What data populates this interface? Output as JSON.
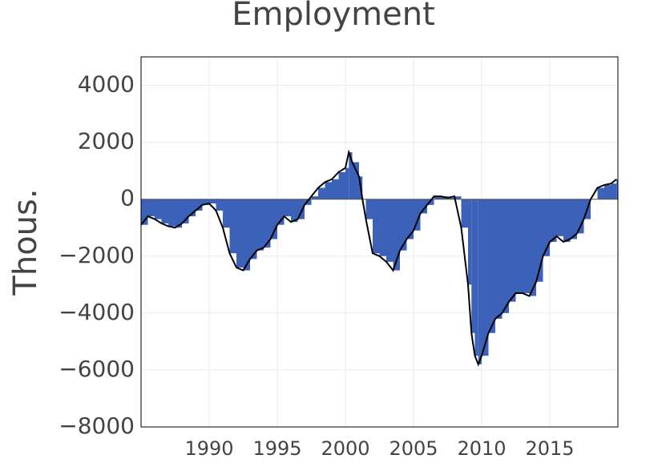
{
  "chart_data": {
    "type": "bar",
    "title": "Employment",
    "y_label": "Thous.",
    "x": [
      1985,
      1985.5,
      1986,
      1986.5,
      1987,
      1987.5,
      1988,
      1988.5,
      1989,
      1989.5,
      1990,
      1990.5,
      1991,
      1991.5,
      1992,
      1992.5,
      1993,
      1993.5,
      1994,
      1994.5,
      1995,
      1995.5,
      1996,
      1996.5,
      1997,
      1997.5,
      1998,
      1998.5,
      1999,
      1999.5,
      2000,
      2000.25,
      2000.5,
      2001,
      2001.25,
      2001.5,
      2002,
      2002.5,
      2003,
      2003.5,
      2004,
      2004.5,
      2005,
      2005.5,
      2006,
      2006.5,
      2007,
      2007.5,
      2008,
      2008.5,
      2009,
      2009.25,
      2009.5,
      2009.75,
      2010,
      2010.5,
      2011,
      2011.5,
      2012,
      2012.5,
      2013,
      2013.5,
      2014,
      2014.5,
      2015,
      2015.5,
      2016,
      2016.5,
      2017,
      2017.5,
      2018,
      2018.5,
      2019,
      2019.5,
      2019.9
    ],
    "values": [
      -900,
      -600,
      -700,
      -850,
      -950,
      -1000,
      -850,
      -600,
      -400,
      -200,
      -150,
      -400,
      -1000,
      -1900,
      -2400,
      -2500,
      -2100,
      -1800,
      -1700,
      -1400,
      -900,
      -600,
      -800,
      -700,
      -200,
      100,
      400,
      600,
      700,
      950,
      1100,
      1650,
      1300,
      800,
      0,
      -700,
      -1900,
      -2000,
      -2200,
      -2500,
      -1800,
      -1400,
      -1100,
      -500,
      -200,
      100,
      100,
      50,
      100,
      -1000,
      -3000,
      -4700,
      -5500,
      -5800,
      -5500,
      -4700,
      -4200,
      -4000,
      -3600,
      -3300,
      -3300,
      -3400,
      -2900,
      -2000,
      -1500,
      -1300,
      -1500,
      -1400,
      -1200,
      -700,
      0,
      400,
      500,
      550,
      700
    ],
    "color": "#3b62b8",
    "line_color": "#000000",
    "xlim": [
      1985,
      2020
    ],
    "ylim": [
      -8000,
      5000
    ],
    "xticks": [
      1990,
      1995,
      2000,
      2005,
      2010,
      2015
    ],
    "yticks": [
      {
        "value": -8000,
        "label": "−8000"
      },
      {
        "value": -6000,
        "label": "−6000"
      },
      {
        "value": -4000,
        "label": "−4000"
      },
      {
        "value": -2000,
        "label": "−2000"
      },
      0,
      2000,
      4000
    ],
    "grid": true
  }
}
